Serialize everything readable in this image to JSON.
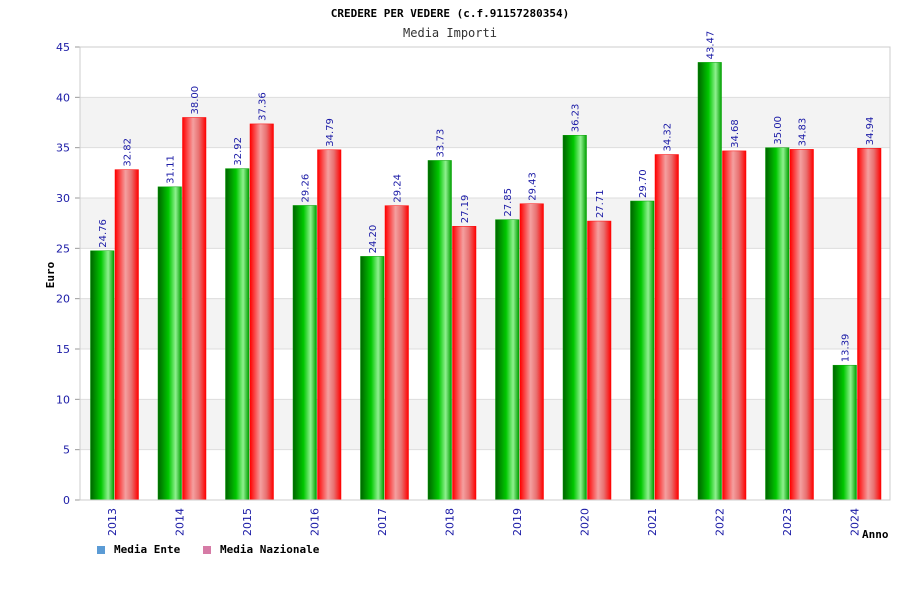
{
  "chart_data": {
    "type": "bar",
    "title": "CREDERE PER VEDERE (c.f.91157280354)",
    "subtitle": "Media Importi",
    "xlabel": "Anno",
    "ylabel": "Euro",
    "ylim": [
      0,
      45
    ],
    "yticks": [
      0,
      5,
      10,
      15,
      20,
      25,
      30,
      35,
      40,
      45
    ],
    "grid": true,
    "legend_position": "bottom-left",
    "categories": [
      "2013",
      "2014",
      "2015",
      "2016",
      "2017",
      "2018",
      "2019",
      "2020",
      "2021",
      "2022",
      "2023",
      "2024"
    ],
    "series": [
      {
        "name": "Media Ente",
        "color": "#00b400",
        "legend_color": "#5b9bd5",
        "values": [
          24.76,
          31.11,
          32.92,
          29.26,
          24.2,
          33.73,
          27.85,
          36.23,
          29.7,
          43.47,
          35.0,
          13.39
        ],
        "labels": [
          "24.76",
          "31.11",
          "32.92",
          "29.26",
          "24.20",
          "33.73",
          "27.85",
          "36.23",
          "29.70",
          "43.47",
          "35.00",
          "13.39"
        ]
      },
      {
        "name": "Media Nazionale",
        "color": "#ff0000",
        "legend_color": "#d67ba6",
        "values": [
          32.82,
          38.0,
          37.36,
          34.79,
          29.24,
          27.19,
          29.43,
          27.71,
          34.32,
          34.68,
          34.83,
          34.94
        ],
        "labels": [
          "32.82",
          "38.00",
          "37.36",
          "34.79",
          "29.24",
          "27.19",
          "29.43",
          "27.71",
          "34.32",
          "34.68",
          "34.83",
          "34.94"
        ]
      }
    ]
  }
}
